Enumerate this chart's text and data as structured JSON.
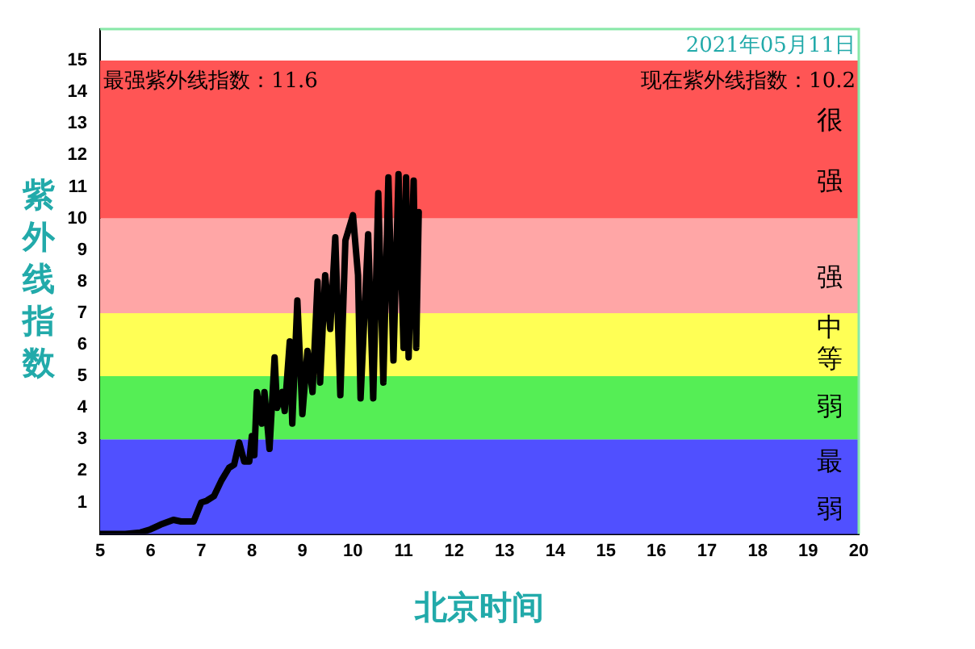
{
  "chart_data": {
    "type": "line",
    "xlabel": "北京时间",
    "ylabel": "紫外线指数",
    "annotations": [
      "2021年05月11日",
      "最强紫外线指数：11.6",
      "现在紫外线指数：10.2"
    ],
    "xlim": [
      5,
      20
    ],
    "xticks": [
      5,
      6,
      7,
      8,
      9,
      10,
      11,
      12,
      13,
      14,
      15,
      16,
      17,
      18,
      19,
      20
    ],
    "ylim": [
      0,
      16
    ],
    "yticks": [
      1,
      2,
      3,
      4,
      5,
      6,
      7,
      8,
      9,
      10,
      11,
      12,
      13,
      14,
      15
    ],
    "grid": false,
    "legend": false,
    "marker": "none",
    "line_style": "solid",
    "bands": [
      {
        "axis": "y",
        "from": 0,
        "to": 3,
        "label": "最弱",
        "color": "#5050ff"
      },
      {
        "axis": "y",
        "from": 3,
        "to": 5,
        "label": "弱",
        "color": "#55ee55"
      },
      {
        "axis": "y",
        "from": 5,
        "to": 7,
        "label": "中等",
        "color": "#ffff55"
      },
      {
        "axis": "y",
        "from": 7,
        "to": 10,
        "label": "强",
        "color": "#ffa6a6"
      },
      {
        "axis": "y",
        "from": 10,
        "to": 15,
        "label": "很强",
        "color": "#ff5555"
      }
    ],
    "series": [
      {
        "color": "#000000",
        "x": [
          5,
          5.5,
          5.8,
          6,
          6.2,
          6.45,
          6.6,
          6.85,
          7,
          7.1,
          7.25,
          7.4,
          7.55,
          7.65,
          7.75,
          7.85,
          7.95,
          8,
          8.05,
          8.1,
          8.2,
          8.25,
          8.35,
          8.45,
          8.5,
          8.6,
          8.65,
          8.75,
          8.8,
          8.9,
          9,
          9.1,
          9.2,
          9.3,
          9.35,
          9.45,
          9.55,
          9.65,
          9.75,
          9.85,
          10,
          10.1,
          10.15,
          10.3,
          10.4,
          10.5,
          10.6,
          10.7,
          10.8,
          10.9,
          11,
          11.05,
          11.1,
          11.2,
          11.25,
          11.3
        ],
        "values": [
          0,
          0,
          0.05,
          0.15,
          0.3,
          0.45,
          0.4,
          0.4,
          1,
          1.05,
          1.2,
          1.7,
          2.1,
          2.2,
          2.9,
          2.3,
          2.3,
          3.1,
          2.5,
          4.5,
          3.5,
          4.5,
          2.7,
          5.6,
          4,
          4.5,
          3.9,
          6.1,
          3.5,
          7.4,
          3.8,
          5.8,
          4.5,
          8,
          4.8,
          8.2,
          6.5,
          9.4,
          4.4,
          9.3,
          10.1,
          8.2,
          4.3,
          9.5,
          4.3,
          10.8,
          4.8,
          11.3,
          5.5,
          11.4,
          5.9,
          11.3,
          5.6,
          11.2,
          5.9,
          10.2
        ]
      }
    ]
  }
}
